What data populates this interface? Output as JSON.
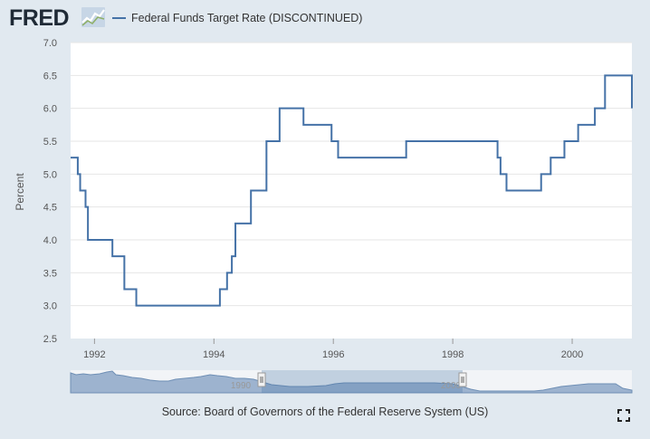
{
  "header": {
    "logo_text": "FRED",
    "legend_label": "Federal Funds Target Rate (DISCONTINUED)"
  },
  "source_text": "Source: Board of Governors of the Federal Reserve System (US)",
  "icons": {
    "logo": "fred-logo-icon",
    "fullscreen": "fullscreen-icon"
  },
  "colors": {
    "series": "#4572a7",
    "background": "#e1e9f0",
    "plot_background": "#ffffff"
  },
  "chart_data": {
    "type": "line",
    "step": true,
    "title": "",
    "xlabel": "",
    "ylabel": "Percent",
    "xlim": [
      1991.6,
      2001.0
    ],
    "ylim": [
      2.5,
      7.0
    ],
    "yticks": [
      2.5,
      3.0,
      3.5,
      4.0,
      4.5,
      5.0,
      5.5,
      6.0,
      6.5,
      7.0
    ],
    "ytick_labels": [
      "2.5",
      "3.0",
      "3.5",
      "4.0",
      "4.5",
      "5.0",
      "5.5",
      "6.0",
      "6.5",
      "7.0"
    ],
    "xticks": [
      1992,
      1994,
      1996,
      1998,
      2000
    ],
    "xtick_labels": [
      "1992",
      "1994",
      "1996",
      "1998",
      "2000"
    ],
    "grid": "horizontal",
    "legend": "top",
    "series": [
      {
        "name": "Federal Funds Target Rate (DISCONTINUED)",
        "x": [
          1991.6,
          1991.72,
          1991.76,
          1991.85,
          1991.89,
          1992.3,
          1992.5,
          1992.7,
          1994.1,
          1994.22,
          1994.3,
          1994.36,
          1994.62,
          1994.88,
          1995.1,
          1995.5,
          1995.97,
          1996.08,
          1997.22,
          1998.75,
          1998.8,
          1998.9,
          1999.48,
          1999.64,
          1999.87,
          2000.1,
          2000.38,
          2000.55,
          2001.0
        ],
        "y": [
          5.25,
          5.0,
          4.75,
          4.5,
          4.0,
          3.75,
          3.25,
          3.0,
          3.25,
          3.5,
          3.75,
          4.25,
          4.75,
          5.5,
          6.0,
          5.75,
          5.5,
          5.25,
          5.5,
          5.25,
          5.0,
          4.75,
          5.0,
          5.25,
          5.5,
          5.75,
          6.0,
          6.5,
          6.0
        ]
      }
    ],
    "navigator": {
      "xtick_labels": [
        "1990",
        "2000"
      ],
      "selection": [
        1991.6,
        2001.0
      ]
    }
  }
}
